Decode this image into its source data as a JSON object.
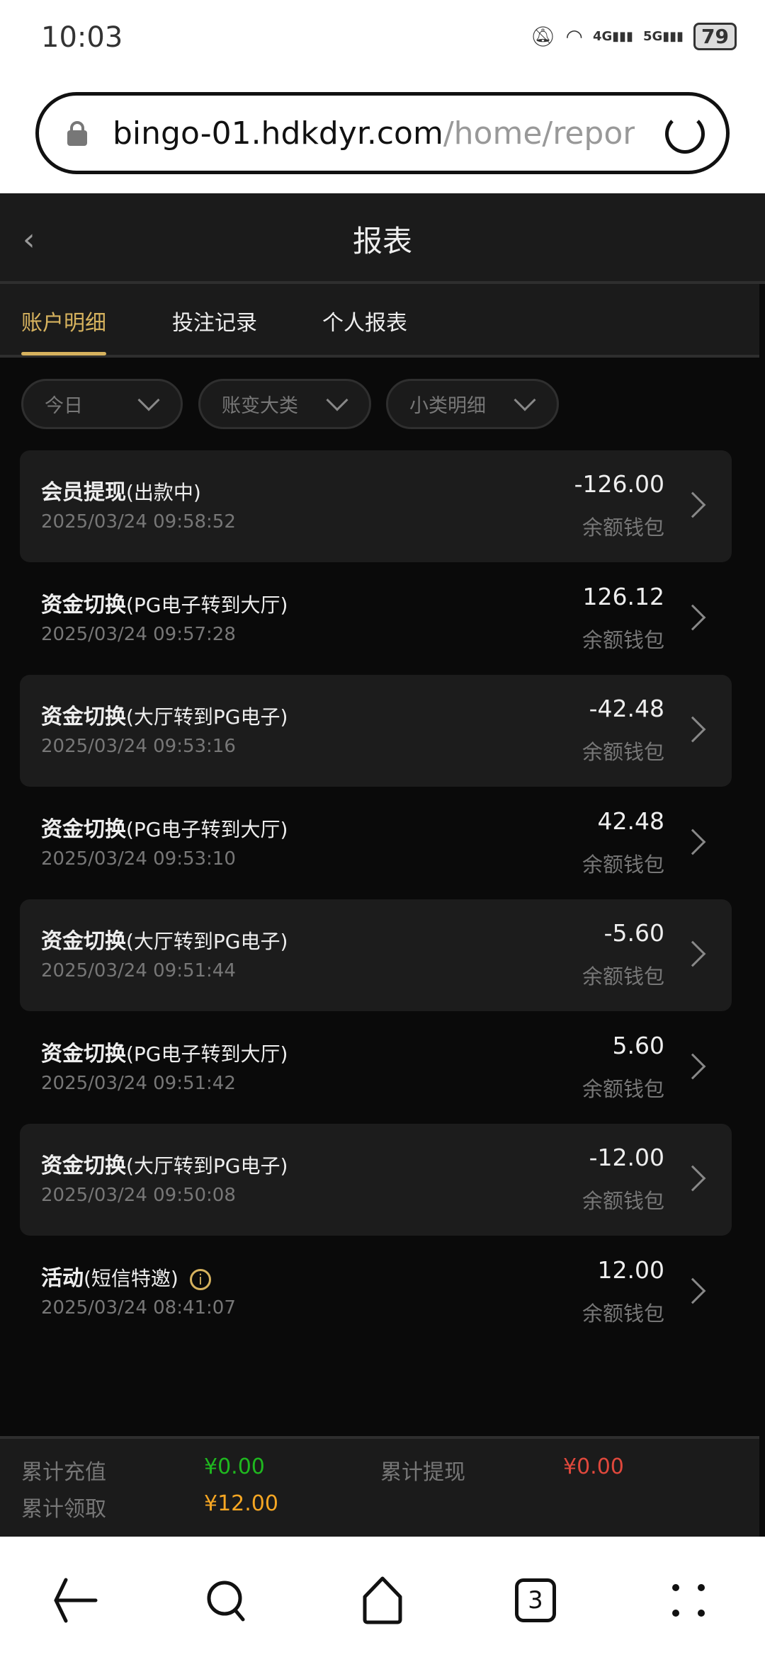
{
  "status_bar": {
    "time": "10:03",
    "battery": "79",
    "net1": "4G",
    "net2": "5G"
  },
  "browser": {
    "url_host": "bingo-01.hdkdyr.com",
    "url_path": "/home/report",
    "tab_count": "3"
  },
  "header": {
    "title": "报表"
  },
  "tabs": [
    {
      "label": "账户明细",
      "active": true
    },
    {
      "label": "投注记录"
    },
    {
      "label": "个人报表"
    }
  ],
  "filters": [
    {
      "label": "今日"
    },
    {
      "label": "账变大类"
    },
    {
      "label": "小类明细"
    }
  ],
  "records": [
    {
      "title": "会员提现",
      "detail": "(出款中)",
      "time": "2025/03/24 09:58:52",
      "amount": "-126.00",
      "wallet": "余额钱包"
    },
    {
      "title": "资金切换",
      "detail": "(PG电子转到大厅)",
      "time": "2025/03/24 09:57:28",
      "amount": "126.12",
      "wallet": "余额钱包"
    },
    {
      "title": "资金切换",
      "detail": "(大厅转到PG电子)",
      "time": "2025/03/24 09:53:16",
      "amount": "-42.48",
      "wallet": "余额钱包"
    },
    {
      "title": "资金切换",
      "detail": "(PG电子转到大厅)",
      "time": "2025/03/24 09:53:10",
      "amount": "42.48",
      "wallet": "余额钱包"
    },
    {
      "title": "资金切换",
      "detail": "(大厅转到PG电子)",
      "time": "2025/03/24 09:51:44",
      "amount": "-5.60",
      "wallet": "余额钱包"
    },
    {
      "title": "资金切换",
      "detail": "(PG电子转到大厅)",
      "time": "2025/03/24 09:51:42",
      "amount": "5.60",
      "wallet": "余额钱包"
    },
    {
      "title": "资金切换",
      "detail": "(大厅转到PG电子)",
      "time": "2025/03/24 09:50:08",
      "amount": "-12.00",
      "wallet": "余额钱包"
    },
    {
      "title": "活动",
      "detail": "(短信特邀)",
      "time": "2025/03/24 08:41:07",
      "amount": "12.00",
      "wallet": "余额钱包",
      "info": "i"
    }
  ],
  "summary": {
    "deposit_label": "累计充值",
    "deposit_value": "¥0.00",
    "deposit_color": "#1fb81f",
    "withdraw_label": "累计提现",
    "withdraw_value": "¥0.00",
    "withdraw_color": "#e0483c",
    "claim_label": "累计领取",
    "claim_value": "¥12.00",
    "claim_color": "#f5a623"
  },
  "colors": {
    "accent": "#d6b25e",
    "bg": "#0a0a0a",
    "card": "#1c1c1c"
  }
}
